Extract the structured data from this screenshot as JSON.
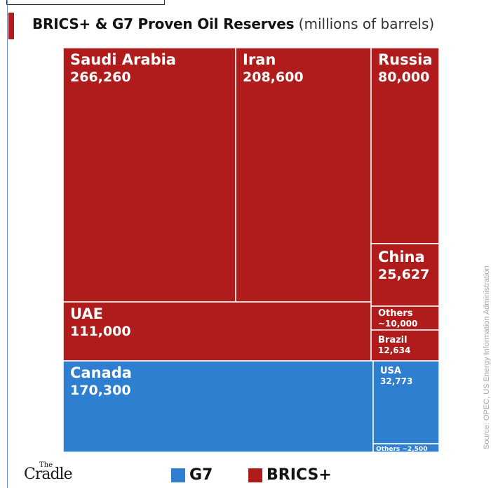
{
  "title": "BRICS+ & G7 Proven Oil Reserves",
  "title_unit": "(millions of barrels)",
  "source": "Source: OPEC, US Energy Information Administration",
  "logo": {
    "small": "The",
    "name": "Cradle"
  },
  "colors": {
    "brics": "#b01c1c",
    "g7": "#2f7fd0",
    "border": "#ffffff"
  },
  "legend": [
    {
      "label": "G7",
      "color": "#2f7fd0"
    },
    {
      "label": "BRICS+",
      "color": "#b01c1c"
    }
  ],
  "chart_data": {
    "type": "treemap",
    "title": "BRICS+ & G7 Proven Oil Reserves",
    "unit": "millions of barrels",
    "items": [
      {
        "name": "Saudi Arabia",
        "value_label": "266,260",
        "value": 266260,
        "group": "BRICS+"
      },
      {
        "name": "Iran",
        "value_label": "208,600",
        "value": 208600,
        "group": "BRICS+"
      },
      {
        "name": "Russia",
        "value_label": "80,000",
        "value": 80000,
        "group": "BRICS+"
      },
      {
        "name": "China",
        "value_label": "25,627",
        "value": 25627,
        "group": "BRICS+"
      },
      {
        "name": "UAE",
        "value_label": "111,000",
        "value": 111000,
        "group": "BRICS+"
      },
      {
        "name": "Others",
        "value_label": "~10,000",
        "value": 10000,
        "group": "BRICS+"
      },
      {
        "name": "Brazil",
        "value_label": "12,634",
        "value": 12634,
        "group": "BRICS+"
      },
      {
        "name": "Canada",
        "value_label": "170,300",
        "value": 170300,
        "group": "G7"
      },
      {
        "name": "USA",
        "value_label": "32,773",
        "value": 32773,
        "group": "G7"
      },
      {
        "name": "Others",
        "value_label": "~2,500",
        "value": 2500,
        "group": "G7"
      }
    ]
  }
}
